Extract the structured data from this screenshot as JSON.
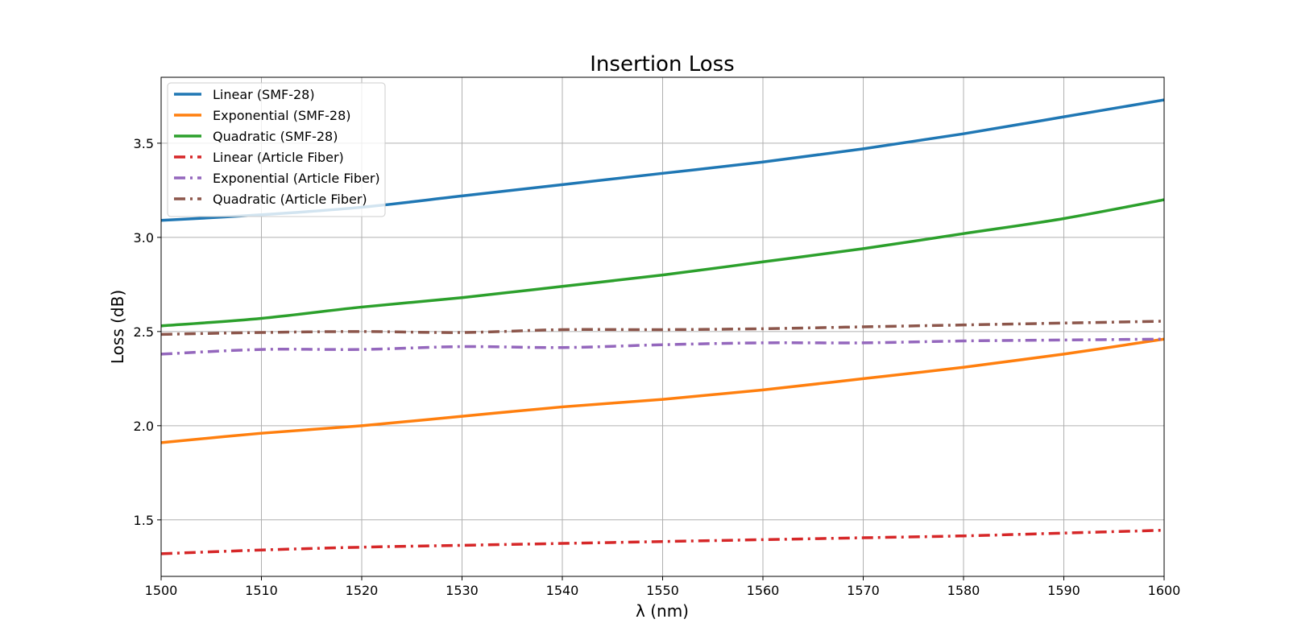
{
  "chart_data": {
    "type": "line",
    "title": "Insertion Loss",
    "xlabel": "λ (nm)",
    "ylabel": "Loss (dB)",
    "xlim": [
      1500,
      1600
    ],
    "ylim": [
      1.2,
      3.85
    ],
    "xticks": [
      1500,
      1510,
      1520,
      1530,
      1540,
      1550,
      1560,
      1570,
      1580,
      1590,
      1600
    ],
    "yticks": [
      1.5,
      2.0,
      2.5,
      3.0,
      3.5
    ],
    "ytick_labels": [
      "1.5",
      "2.0",
      "2.5",
      "3.0",
      "3.5"
    ],
    "grid": true,
    "legend_position": "top-left",
    "x": [
      1500,
      1510,
      1520,
      1530,
      1540,
      1550,
      1560,
      1570,
      1580,
      1590,
      1600
    ],
    "series": [
      {
        "name": "Linear (SMF-28)",
        "color": "#1f77b4",
        "style": "solid",
        "values": [
          3.09,
          3.12,
          3.16,
          3.22,
          3.28,
          3.34,
          3.4,
          3.47,
          3.55,
          3.64,
          3.73
        ]
      },
      {
        "name": "Exponential (SMF-28)",
        "color": "#ff7f0e",
        "style": "solid",
        "values": [
          1.91,
          1.96,
          2.0,
          2.05,
          2.1,
          2.14,
          2.19,
          2.25,
          2.31,
          2.38,
          2.46
        ]
      },
      {
        "name": "Quadratic (SMF-28)",
        "color": "#2ca02c",
        "style": "solid",
        "values": [
          2.53,
          2.57,
          2.63,
          2.68,
          2.74,
          2.8,
          2.87,
          2.94,
          3.02,
          3.1,
          3.2
        ]
      },
      {
        "name": "Linear (Article Fiber)",
        "color": "#d62728",
        "style": "dashdot",
        "values": [
          1.32,
          1.34,
          1.355,
          1.365,
          1.375,
          1.385,
          1.395,
          1.405,
          1.415,
          1.43,
          1.445
        ]
      },
      {
        "name": "Exponential (Article Fiber)",
        "color": "#9467bd",
        "style": "dashdot",
        "values": [
          2.38,
          2.405,
          2.405,
          2.42,
          2.415,
          2.43,
          2.44,
          2.44,
          2.45,
          2.455,
          2.46
        ]
      },
      {
        "name": "Quadratic (Article Fiber)",
        "color": "#8c564b",
        "style": "dashdot",
        "values": [
          2.485,
          2.495,
          2.5,
          2.495,
          2.51,
          2.51,
          2.515,
          2.525,
          2.535,
          2.545,
          2.555
        ]
      }
    ]
  }
}
